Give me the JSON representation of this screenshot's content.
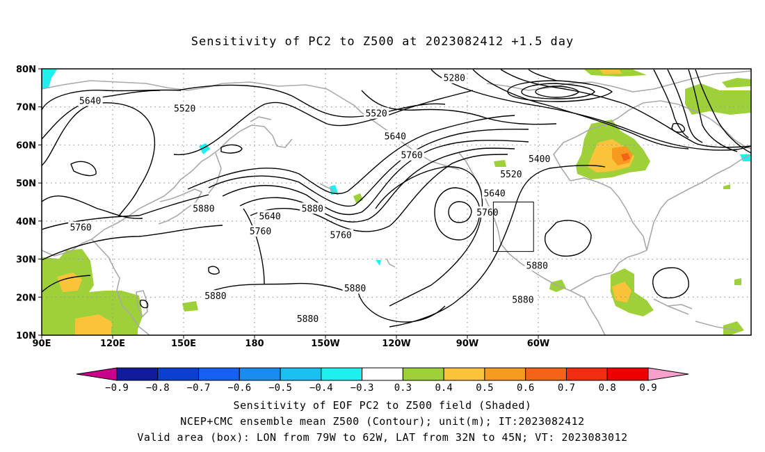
{
  "title": "Sensitivity of PC2 to Z500 at 2023082412 +1.5 day",
  "lat_labels": [
    "80N",
    "70N",
    "60N",
    "50N",
    "40N",
    "30N",
    "20N",
    "10N"
  ],
  "lon_labels": [
    "90E",
    "120E",
    "150E",
    "180",
    "150W",
    "120W",
    "90W",
    "60W"
  ],
  "contour_labels": [
    {
      "text": "5280",
      "lon": -95.5,
      "lat": 77.5
    },
    {
      "text": "5640",
      "lon": 110.5,
      "lat": 71.5
    },
    {
      "text": "5520",
      "lon": 150.5,
      "lat": 69.5
    },
    {
      "text": "5520",
      "lon": -128.5,
      "lat": 68.2
    },
    {
      "text": "5640",
      "lon": -120.5,
      "lat": 62.2
    },
    {
      "text": "5760",
      "lon": -113.5,
      "lat": 57.2
    },
    {
      "text": "5400",
      "lon": -59.5,
      "lat": 56.2
    },
    {
      "text": "5520",
      "lon": -71.5,
      "lat": 52.2
    },
    {
      "text": "5640",
      "lon": -78.5,
      "lat": 47.2
    },
    {
      "text": "5760",
      "lon": -81.5,
      "lat": 42.2
    },
    {
      "text": "5880",
      "lon": -60.5,
      "lat": 28.2
    },
    {
      "text": "5880",
      "lon": 158.5,
      "lat": 43.2
    },
    {
      "text": "5760",
      "lon": 106.5,
      "lat": 38.2
    },
    {
      "text": "5640",
      "lon": -173.5,
      "lat": 41.2
    },
    {
      "text": "5760",
      "lon": -177.5,
      "lat": 37.2
    },
    {
      "text": "5880",
      "lon": -155.5,
      "lat": 43.2
    },
    {
      "text": "5760",
      "lon": -143.5,
      "lat": 36.2
    },
    {
      "text": "5880",
      "lon": -137.5,
      "lat": 22.2
    },
    {
      "text": "5880",
      "lon": -157.5,
      "lat": 14.2
    },
    {
      "text": "5880",
      "lon": 163.5,
      "lat": 20.2
    },
    {
      "text": "5880",
      "lon": -66.5,
      "lat": 19.2
    }
  ],
  "legend": {
    "colors": [
      "#c8008c",
      "#101c9c",
      "#0a3fd0",
      "#1560f0",
      "#1a8cf0",
      "#19c0f0",
      "#1ef0f0",
      "#ffffff",
      "#9ed03a",
      "#fbc33a",
      "#f79a20",
      "#f56318",
      "#f02d10",
      "#ee0000",
      "#f8a0cc"
    ],
    "labels": [
      "−0.9",
      "−0.8",
      "−0.7",
      "−0.6",
      "−0.5",
      "−0.4",
      "−0.3",
      "0.3",
      "0.4",
      "0.5",
      "0.6",
      "0.7",
      "0.8",
      "0.9"
    ]
  },
  "caption": {
    "line1": "Sensitivity of EOF PC2 to Z500 field (Shaded)",
    "line2": "NCEP+CMC ensemble mean Z500 (Contour); unit(m); IT:2023082412",
    "line3": "Valid area (box): LON from 79W to 62W, LAT from 32N to 45N; VT: 2023083012"
  },
  "valid_box": {
    "lon_w": -79,
    "lon_e": -62,
    "lat_s": 32,
    "lat_n": 45
  },
  "colors": {
    "contour": "#000000",
    "coast": "#a9a9a9",
    "grid": "#9a9a9a"
  }
}
